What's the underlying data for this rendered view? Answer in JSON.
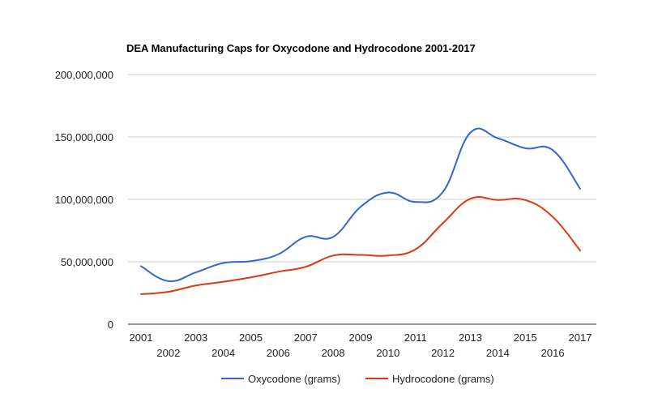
{
  "chart_data": {
    "type": "line",
    "title": "DEA Manufacturing Caps for Oxycodone and Hydrocodone 2001-2017",
    "xlabel": "",
    "ylabel": "",
    "x": [
      "2001",
      "2002",
      "2003",
      "2004",
      "2005",
      "2006",
      "2007",
      "2008",
      "2009",
      "2010",
      "2011",
      "2012",
      "2013",
      "2014",
      "2015",
      "2016",
      "2017"
    ],
    "ylim": [
      0,
      200000000
    ],
    "yticks": [
      0,
      50000000,
      100000000,
      150000000,
      200000000
    ],
    "ytick_labels": [
      "0",
      "50,000,000",
      "100,000,000",
      "150,000,000",
      "200,000,000"
    ],
    "grid": true,
    "legend_position": "bottom",
    "series": [
      {
        "name": "Oxycodone (grams)",
        "color": "#3366cc",
        "values": [
          46500000,
          34500000,
          41500000,
          49000000,
          50500000,
          56000000,
          70000000,
          70000000,
          94000000,
          105500000,
          98000000,
          106000000,
          153500000,
          149000000,
          141000000,
          139500000,
          108500000
        ]
      },
      {
        "name": "Hydrocodone (grams)",
        "color": "#dc3912",
        "values": [
          24000000,
          26000000,
          31000000,
          34000000,
          37500000,
          42000000,
          46000000,
          55000000,
          55500000,
          55000000,
          60000000,
          81000000,
          100500000,
          99500000,
          99500000,
          86000000,
          59000000
        ]
      }
    ]
  }
}
